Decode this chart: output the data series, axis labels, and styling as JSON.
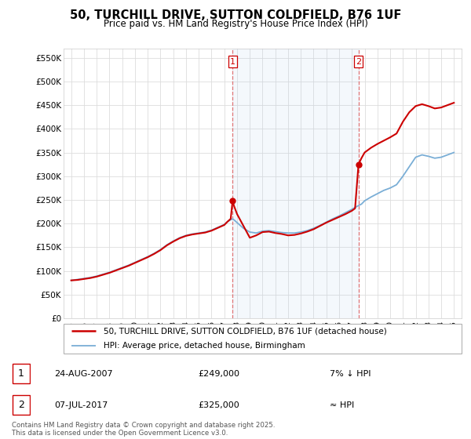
{
  "title": "50, TURCHILL DRIVE, SUTTON COLDFIELD, B76 1UF",
  "subtitle": "Price paid vs. HM Land Registry's House Price Index (HPI)",
  "ylabel_ticks": [
    "£0",
    "£50K",
    "£100K",
    "£150K",
    "£200K",
    "£250K",
    "£300K",
    "£350K",
    "£400K",
    "£450K",
    "£500K",
    "£550K"
  ],
  "ytick_values": [
    0,
    50000,
    100000,
    150000,
    200000,
    250000,
    300000,
    350000,
    400000,
    450000,
    500000,
    550000
  ],
  "ylim": [
    0,
    570000
  ],
  "transaction1": {
    "date": "24-AUG-2007",
    "price": 249000,
    "label": "1",
    "note": "7% ↓ HPI",
    "year": 2007.65
  },
  "transaction2": {
    "date": "07-JUL-2017",
    "price": 325000,
    "label": "2",
    "note": "≈ HPI",
    "year": 2017.52
  },
  "legend_line1": "50, TURCHILL DRIVE, SUTTON COLDFIELD, B76 1UF (detached house)",
  "legend_line2": "HPI: Average price, detached house, Birmingham",
  "footnote": "Contains HM Land Registry data © Crown copyright and database right 2025.\nThis data is licensed under the Open Government Licence v3.0.",
  "line_color_red": "#cc0000",
  "line_color_blue": "#7aaed6",
  "shade_color": "#ddeeff",
  "background_color": "#ffffff",
  "grid_color": "#dddddd",
  "hpi_years": [
    1995,
    1995.5,
    1996,
    1996.5,
    1997,
    1997.5,
    1998,
    1998.5,
    1999,
    1999.5,
    2000,
    2000.5,
    2001,
    2001.5,
    2002,
    2002.5,
    2003,
    2003.5,
    2004,
    2004.5,
    2005,
    2005.5,
    2006,
    2006.5,
    2007,
    2007.25,
    2007.5,
    2007.65,
    2007.75,
    2008,
    2008.5,
    2009,
    2009.5,
    2010,
    2010.5,
    2011,
    2011.5,
    2012,
    2012.5,
    2013,
    2013.5,
    2014,
    2014.5,
    2015,
    2015.5,
    2016,
    2016.5,
    2017,
    2017.25,
    2017.52,
    2017.75,
    2018,
    2018.5,
    2019,
    2019.5,
    2020,
    2020.5,
    2021,
    2021.5,
    2022,
    2022.5,
    2023,
    2023.5,
    2024,
    2024.5,
    2025
  ],
  "hpi_vals": [
    80000,
    82000,
    84000,
    86000,
    89000,
    93000,
    97000,
    102000,
    107000,
    112000,
    118000,
    124000,
    130000,
    137000,
    145000,
    155000,
    163000,
    170000,
    175000,
    178000,
    180000,
    182000,
    186000,
    192000,
    198000,
    204000,
    208000,
    210000,
    208000,
    202000,
    190000,
    182000,
    180000,
    184000,
    185000,
    183000,
    181000,
    180000,
    180000,
    182000,
    185000,
    190000,
    196000,
    203000,
    210000,
    216000,
    223000,
    230000,
    234000,
    238000,
    241000,
    248000,
    256000,
    263000,
    270000,
    275000,
    282000,
    300000,
    320000,
    340000,
    345000,
    342000,
    338000,
    340000,
    345000,
    350000
  ],
  "prop_years": [
    1995,
    1995.5,
    1996,
    1996.5,
    1997,
    1997.5,
    1998,
    1998.5,
    1999,
    1999.5,
    2000,
    2000.5,
    2001,
    2001.5,
    2002,
    2002.5,
    2003,
    2003.5,
    2004,
    2004.5,
    2005,
    2005.5,
    2006,
    2006.5,
    2007,
    2007.25,
    2007.5,
    2007.65,
    2007.75,
    2008,
    2008.5,
    2009,
    2009.5,
    2010,
    2010.5,
    2011,
    2011.5,
    2012,
    2012.5,
    2013,
    2013.5,
    2014,
    2014.5,
    2015,
    2015.5,
    2016,
    2016.5,
    2017,
    2017.25,
    2017.52,
    2017.75,
    2018,
    2018.5,
    2019,
    2019.5,
    2020,
    2020.5,
    2021,
    2021.5,
    2022,
    2022.5,
    2023,
    2023.5,
    2024,
    2024.5,
    2025
  ],
  "prop_vals": [
    80000,
    81000,
    83000,
    85000,
    88000,
    92000,
    96000,
    101000,
    106000,
    111000,
    117000,
    123000,
    129000,
    136000,
    144000,
    154000,
    162000,
    169000,
    174000,
    177000,
    179000,
    181000,
    185000,
    191000,
    197000,
    204000,
    210000,
    249000,
    238000,
    220000,
    195000,
    170000,
    175000,
    182000,
    183000,
    180000,
    178000,
    175000,
    176000,
    179000,
    183000,
    188000,
    195000,
    202000,
    208000,
    214000,
    220000,
    227000,
    232000,
    325000,
    338000,
    350000,
    360000,
    368000,
    375000,
    382000,
    390000,
    415000,
    435000,
    448000,
    452000,
    448000,
    443000,
    445000,
    450000,
    455000
  ]
}
